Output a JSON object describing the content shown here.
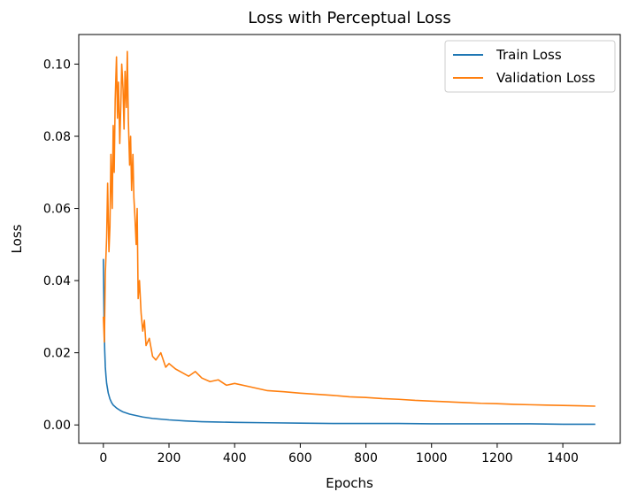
{
  "chart_data": {
    "type": "line",
    "title": "Loss with Perceptual Loss",
    "xlabel": "Epochs",
    "ylabel": "Loss",
    "xlim": [
      -75,
      1575
    ],
    "ylim": [
      -0.0051,
      0.1082
    ],
    "xticks": [
      0,
      200,
      400,
      600,
      800,
      1000,
      1200,
      1400
    ],
    "yticks": [
      0.0,
      0.02,
      0.04,
      0.06,
      0.08,
      0.1
    ],
    "xtick_labels": [
      "0",
      "200",
      "400",
      "600",
      "800",
      "1000",
      "1200",
      "1400"
    ],
    "ytick_labels": [
      "0.00",
      "0.02",
      "0.04",
      "0.06",
      "0.08",
      "0.10"
    ],
    "legend_position": "top-right",
    "grid": false,
    "series": [
      {
        "name": "Train Loss",
        "color": "#1f77b4",
        "x": [
          0,
          1,
          2,
          4,
          6,
          8,
          10,
          15,
          20,
          25,
          30,
          40,
          50,
          60,
          80,
          100,
          120,
          150,
          200,
          250,
          300,
          350,
          400,
          500,
          600,
          700,
          800,
          900,
          1000,
          1100,
          1200,
          1300,
          1400,
          1499
        ],
        "y": [
          0.046,
          0.038,
          0.03,
          0.021,
          0.016,
          0.0135,
          0.0115,
          0.0088,
          0.0072,
          0.0062,
          0.0055,
          0.0047,
          0.0041,
          0.0036,
          0.003,
          0.0026,
          0.0022,
          0.0018,
          0.0014,
          0.0011,
          0.0009,
          0.0008,
          0.0007,
          0.0006,
          0.0005,
          0.0004,
          0.0004,
          0.0004,
          0.0003,
          0.0003,
          0.0003,
          0.0003,
          0.0002,
          0.0002
        ]
      },
      {
        "name": "Validation Loss",
        "color": "#ff7f0e",
        "x": [
          0,
          3,
          6,
          10,
          13,
          17,
          20,
          23,
          27,
          30,
          33,
          36,
          40,
          43,
          46,
          50,
          53,
          56,
          60,
          63,
          66,
          70,
          73,
          76,
          80,
          83,
          86,
          90,
          93,
          96,
          100,
          103,
          106,
          110,
          115,
          120,
          125,
          130,
          140,
          150,
          160,
          175,
          190,
          200,
          220,
          240,
          260,
          280,
          300,
          325,
          350,
          375,
          400,
          450,
          500,
          550,
          600,
          650,
          700,
          750,
          800,
          850,
          900,
          950,
          1000,
          1050,
          1100,
          1150,
          1200,
          1250,
          1300,
          1350,
          1400,
          1450,
          1499
        ],
        "y": [
          0.03,
          0.023,
          0.042,
          0.052,
          0.067,
          0.048,
          0.055,
          0.075,
          0.06,
          0.083,
          0.07,
          0.09,
          0.102,
          0.085,
          0.095,
          0.078,
          0.088,
          0.1,
          0.093,
          0.082,
          0.098,
          0.088,
          0.1035,
          0.085,
          0.072,
          0.08,
          0.065,
          0.075,
          0.063,
          0.058,
          0.05,
          0.06,
          0.035,
          0.04,
          0.031,
          0.026,
          0.029,
          0.022,
          0.024,
          0.019,
          0.018,
          0.02,
          0.016,
          0.017,
          0.0155,
          0.0145,
          0.0135,
          0.0148,
          0.013,
          0.012,
          0.0125,
          0.011,
          0.0115,
          0.0105,
          0.0095,
          0.0092,
          0.0088,
          0.0085,
          0.0082,
          0.0078,
          0.0076,
          0.0073,
          0.0071,
          0.0068,
          0.0066,
          0.0064,
          0.0062,
          0.006,
          0.0059,
          0.0057,
          0.0056,
          0.0055,
          0.0054,
          0.0053,
          0.0052
        ]
      }
    ]
  }
}
